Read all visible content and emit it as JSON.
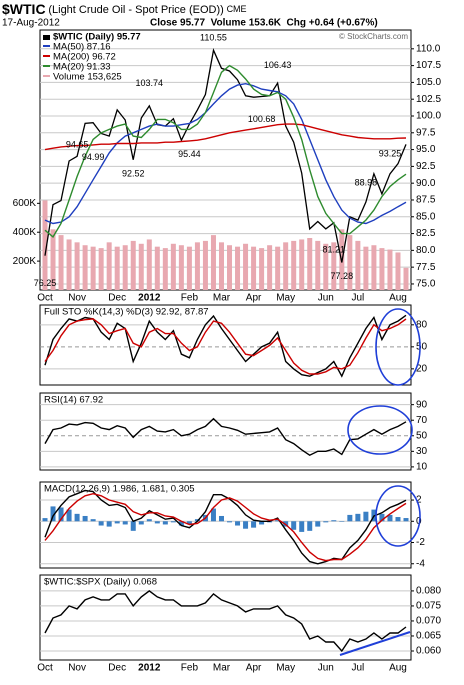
{
  "header": {
    "symbol": "$WTIC",
    "name": "(Light Crude Oil - Spot Price (EOD))",
    "exchange": "CME",
    "date": "17-Aug-2012",
    "quote": "Close 95.77  Volume 153.6K  Chg +0.64 (+0.67%)",
    "credit": "© StockCharts.com"
  },
  "chart_data": [
    {
      "type": "line",
      "categories": [
        "Oct",
        null,
        null,
        null,
        "Nov",
        null,
        null,
        null,
        null,
        "Dec",
        null,
        null,
        null,
        "2012",
        null,
        null,
        null,
        null,
        "Feb",
        null,
        null,
        null,
        "Mar",
        null,
        null,
        null,
        "Apr",
        null,
        null,
        null,
        "May",
        null,
        null,
        null,
        null,
        "Jun",
        null,
        null,
        null,
        "Jul",
        null,
        null,
        null,
        null,
        "Aug",
        null
      ],
      "series": [
        {
          "name": "$WTIC (Daily) 95.77",
          "color": "#000000",
          "values": [
            79.2,
            86.8,
            87.4,
            93.3,
            94.0,
            98.9,
            99.0,
            97.4,
            97.0,
            100.9,
            99.4,
            93.5,
            99.7,
            101.5,
            98.7,
            98.5,
            99.6,
            96.4,
            98.8,
            100.9,
            103.2,
            109.8,
            107.1,
            106.7,
            105.4,
            103.0,
            102.8,
            102.9,
            103.0,
            104.9,
            98.5,
            96.1,
            91.5,
            83.2,
            84.3,
            83.2,
            84.1,
            78.2,
            85.0,
            84.5,
            87.2,
            91.4,
            88.4,
            91.4,
            92.9,
            95.77
          ]
        },
        {
          "name": "MA(50) 87.16",
          "color": "#1f3fbf",
          "values": [
            84.5,
            84.0,
            84.2,
            85.0,
            86.5,
            88.5,
            90.5,
            92.5,
            94.5,
            96.0,
            97.0,
            97.5,
            98.0,
            98.5,
            98.8,
            98.5,
            98.5,
            98.7,
            98.9,
            99.5,
            100.5,
            101.8,
            103.0,
            104.0,
            104.6,
            104.8,
            104.5,
            104.0,
            103.8,
            103.6,
            103.0,
            101.8,
            99.5,
            96.5,
            93.5,
            90.5,
            88.0,
            86.0,
            84.8,
            84.2,
            84.0,
            84.5,
            85.2,
            85.8,
            86.5,
            87.16
          ]
        },
        {
          "name": "MA(200) 96.72",
          "color": "#cc0000",
          "values": [
            95.0,
            95.2,
            95.4,
            95.5,
            95.6,
            95.6,
            95.7,
            95.8,
            95.8,
            95.9,
            95.9,
            95.9,
            96.0,
            96.0,
            96.0,
            96.1,
            96.1,
            96.2,
            96.3,
            96.4,
            96.6,
            96.9,
            97.2,
            97.5,
            97.7,
            97.9,
            98.1,
            98.3,
            98.5,
            98.7,
            98.8,
            98.8,
            98.7,
            98.4,
            98.1,
            97.8,
            97.5,
            97.2,
            97.0,
            96.8,
            96.7,
            96.6,
            96.6,
            96.6,
            96.7,
            96.72
          ]
        },
        {
          "name": "MA(20) 91.33",
          "color": "#2e8b2e",
          "values": [
            83.0,
            82.0,
            84.0,
            87.5,
            91.0,
            94.0,
            96.5,
            97.5,
            98.0,
            98.5,
            98.8,
            97.0,
            96.8,
            98.0,
            99.5,
            99.5,
            99.0,
            98.0,
            98.0,
            98.8,
            100.5,
            103.5,
            106.5,
            107.5,
            106.8,
            105.5,
            104.0,
            103.2,
            103.0,
            103.5,
            102.5,
            99.8,
            96.5,
            92.0,
            88.0,
            85.5,
            84.0,
            82.5,
            82.5,
            83.5,
            84.5,
            86.0,
            88.0,
            89.5,
            90.5,
            91.33
          ]
        },
        {
          "name": "Volume 153,625",
          "color": "#e8a8b0",
          "type": "bar",
          "axis": "y2",
          "values": [
            620000,
            420000,
            380000,
            350000,
            330000,
            310000,
            300000,
            290000,
            330000,
            300000,
            310000,
            340000,
            320000,
            350000,
            300000,
            290000,
            320000,
            310000,
            300000,
            330000,
            340000,
            380000,
            330000,
            310000,
            300000,
            320000,
            300000,
            290000,
            310000,
            300000,
            330000,
            340000,
            350000,
            360000,
            340000,
            320000,
            330000,
            420000,
            380000,
            340000,
            300000,
            310000,
            290000,
            280000,
            260000,
            153625
          ]
        }
      ],
      "annotations": [
        {
          "x": 0,
          "value": 76.25
        },
        {
          "x": 4,
          "value": 94.65
        },
        {
          "x": 6,
          "value": 94.99
        },
        {
          "x": 11,
          "value": 92.52
        },
        {
          "x": 13,
          "value": 103.74
        },
        {
          "x": 18,
          "value": 95.44
        },
        {
          "x": 21,
          "value": 110.55
        },
        {
          "x": 29,
          "value": 106.43
        },
        {
          "x": 27,
          "value": 100.68
        },
        {
          "x": 36,
          "value": 81.21
        },
        {
          "x": 37,
          "value": 77.28
        },
        {
          "x": 40,
          "value": 88.98
        },
        {
          "x": 43,
          "value": 93.25
        }
      ],
      "ylim": [
        74.1,
        112.8
      ],
      "yticks": [
        {
          "value": 75,
          "label": "75.0"
        },
        {
          "value": 77.5,
          "label": "77.5"
        },
        {
          "value": 80,
          "label": "80.0"
        },
        {
          "value": 82.5,
          "label": "82.5"
        },
        {
          "value": 85,
          "label": "85.0"
        },
        {
          "value": 87.5,
          "label": "87.5"
        },
        {
          "value": 90,
          "label": "90.0"
        },
        {
          "value": 92.5,
          "label": "92.5"
        },
        {
          "value": 95,
          "label": "95.0"
        },
        {
          "value": 97.5,
          "label": "97.5"
        },
        {
          "value": 100,
          "label": "100.0"
        },
        {
          "value": 102.5,
          "label": "102.5"
        },
        {
          "value": 105,
          "label": "105.0"
        },
        {
          "value": 107.5,
          "label": "107.5"
        },
        {
          "value": 110,
          "label": "110.0"
        }
      ],
      "y2lim": [
        0,
        1800000
      ],
      "y2ticks": [
        {
          "value": 200000,
          "label": "200K"
        },
        {
          "value": 400000,
          "label": "400K"
        },
        {
          "value": 600000,
          "label": "600K"
        }
      ],
      "grid": true,
      "legend": "top-left"
    },
    {
      "type": "line",
      "title": "Full STO %K(14,3) %D(3) 92.92, 87.87",
      "series": [
        {
          "color": "#000000",
          "values": [
            25,
            60,
            75,
            88,
            85,
            90,
            88,
            70,
            60,
            82,
            75,
            30,
            55,
            85,
            70,
            60,
            72,
            40,
            35,
            60,
            80,
            92,
            75,
            60,
            45,
            30,
            40,
            50,
            55,
            70,
            30,
            20,
            12,
            10,
            15,
            20,
            30,
            10,
            35,
            55,
            75,
            90,
            60,
            80,
            85,
            92.92
          ]
        },
        {
          "color": "#cc0000",
          "values": [
            30,
            45,
            65,
            80,
            85,
            87,
            88,
            80,
            68,
            72,
            75,
            55,
            50,
            70,
            75,
            68,
            68,
            55,
            45,
            50,
            70,
            85,
            82,
            70,
            55,
            40,
            38,
            45,
            52,
            62,
            45,
            28,
            18,
            13,
            13,
            16,
            22,
            20,
            25,
            42,
            62,
            80,
            72,
            75,
            80,
            87.87
          ]
        }
      ],
      "ylim": [
        -2,
        107
      ],
      "yticks": [
        20,
        50,
        80
      ],
      "grid": true
    },
    {
      "type": "line",
      "title": "RSI(14) 67.92",
      "series": [
        {
          "color": "#000000",
          "values": [
            40,
            58,
            60,
            65,
            64,
            67,
            66,
            60,
            58,
            63,
            60,
            48,
            58,
            62,
            56,
            55,
            58,
            50,
            52,
            58,
            62,
            72,
            62,
            60,
            57,
            52,
            53,
            54,
            55,
            60,
            45,
            40,
            32,
            25,
            30,
            30,
            33,
            26,
            45,
            46,
            52,
            58,
            52,
            58,
            62,
            67.92
          ]
        }
      ],
      "ylim": [
        6,
        105
      ],
      "yticks": [
        10,
        30,
        50,
        70,
        90
      ],
      "grid": true
    },
    {
      "type": "line",
      "title": "MACD(12,26,9) 1.986, 1.681, 0.305",
      "series": [
        {
          "color": "#3a7fc4",
          "type": "bar",
          "values": [
            0.3,
            1.4,
            1.3,
            1.1,
            0.7,
            0.5,
            0.2,
            -0.4,
            -0.5,
            -0.2,
            -0.3,
            -0.9,
            -0.3,
            0.2,
            -0.2,
            -0.3,
            -0.1,
            -0.4,
            -0.3,
            0.2,
            0.6,
            1.2,
            0.5,
            -0.1,
            -0.4,
            -0.7,
            -0.6,
            -0.3,
            -0.1,
            0.1,
            -0.5,
            -0.8,
            -1.0,
            -0.9,
            -0.5,
            -0.1,
            0.1,
            0.0,
            0.6,
            0.7,
            0.9,
            1.1,
            0.7,
            0.6,
            0.4,
            0.305
          ]
        },
        {
          "color": "#000000",
          "values": [
            -1.5,
            0.5,
            1.5,
            2.3,
            2.6,
            2.9,
            2.8,
            2.0,
            1.5,
            1.6,
            1.3,
            0.0,
            0.3,
            1.0,
            0.6,
            0.2,
            0.3,
            -0.4,
            -0.6,
            0.0,
            0.9,
            2.5,
            2.5,
            2.1,
            1.5,
            0.6,
            0.1,
            0.0,
            0.0,
            0.3,
            -0.8,
            -1.8,
            -3.0,
            -3.8,
            -4.0,
            -3.8,
            -3.5,
            -3.6,
            -2.5,
            -1.8,
            -0.8,
            0.5,
            0.8,
            1.3,
            1.6,
            1.986
          ]
        },
        {
          "color": "#cc0000",
          "values": [
            -1.8,
            -0.9,
            0.2,
            1.2,
            1.9,
            2.4,
            2.6,
            2.4,
            2.0,
            1.8,
            1.6,
            0.9,
            0.6,
            0.8,
            0.8,
            0.5,
            0.4,
            0.0,
            -0.3,
            -0.2,
            0.3,
            1.3,
            2.0,
            2.2,
            1.9,
            1.3,
            0.7,
            0.3,
            0.1,
            0.2,
            -0.3,
            -1.0,
            -2.0,
            -2.9,
            -3.5,
            -3.7,
            -3.6,
            -3.6,
            -3.1,
            -2.5,
            -1.7,
            -0.6,
            0.1,
            0.7,
            1.2,
            1.681
          ]
        }
      ],
      "ylim": [
        -4.4,
        3.7
      ],
      "yticks": [
        2,
        0,
        -2,
        -4
      ],
      "grid": true
    },
    {
      "type": "line",
      "title": "$WTIC:$SPX (Daily) 0.068",
      "categories": [
        "Oct",
        null,
        null,
        null,
        "Nov",
        null,
        null,
        null,
        null,
        "Dec",
        null,
        null,
        null,
        "2012",
        null,
        null,
        null,
        null,
        "Feb",
        null,
        null,
        null,
        "Mar",
        null,
        null,
        null,
        "Apr",
        null,
        null,
        null,
        "May",
        null,
        null,
        null,
        null,
        "Jun",
        null,
        null,
        null,
        "Jul",
        null,
        null,
        null,
        null,
        "Aug",
        null
      ],
      "series": [
        {
          "color": "#000000",
          "values": [
            0.066,
            0.071,
            0.072,
            0.075,
            0.074,
            0.077,
            0.078,
            0.077,
            0.077,
            0.079,
            0.079,
            0.075,
            0.078,
            0.08,
            0.078,
            0.077,
            0.077,
            0.075,
            0.075,
            0.075,
            0.076,
            0.079,
            0.077,
            0.076,
            0.075,
            0.073,
            0.074,
            0.074,
            0.074,
            0.075,
            0.072,
            0.071,
            0.069,
            0.064,
            0.065,
            0.063,
            0.063,
            0.06,
            0.064,
            0.063,
            0.064,
            0.066,
            0.064,
            0.066,
            0.066,
            0.068
          ]
        }
      ],
      "ylim": [
        0.057,
        0.0853
      ],
      "yticks": [
        {
          "value": 0.06,
          "label": "0.060"
        },
        {
          "value": 0.065,
          "label": "0.065"
        },
        {
          "value": 0.07,
          "label": "0.070"
        },
        {
          "value": 0.075,
          "label": "0.075"
        },
        {
          "value": 0.08,
          "label": "0.080"
        }
      ],
      "grid": true
    }
  ]
}
